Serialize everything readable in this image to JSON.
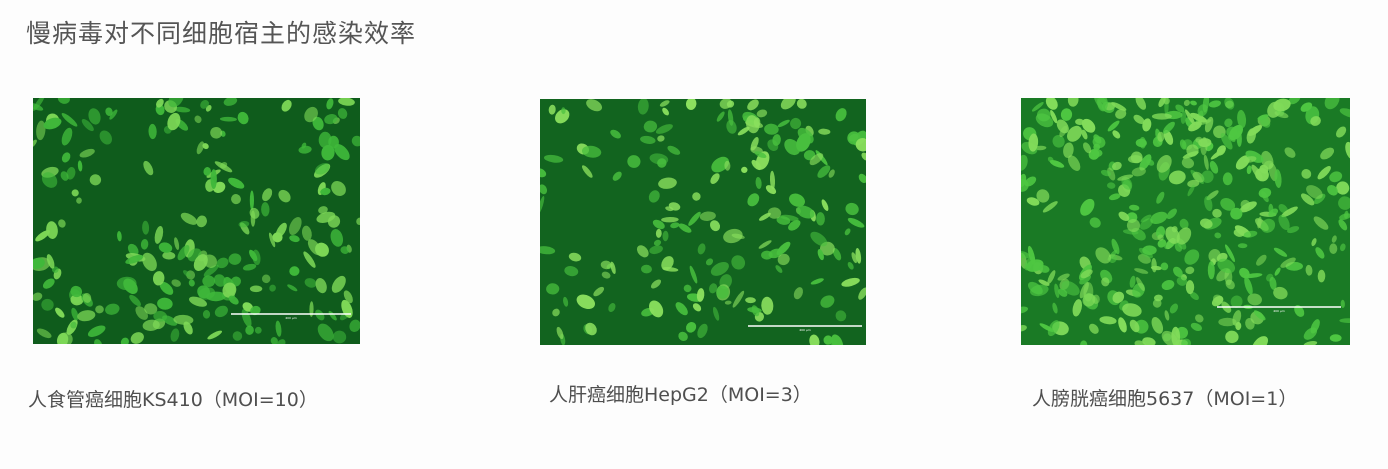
{
  "title": "慢病毒对不同细胞宿主的感染效率",
  "panels": [
    {
      "caption": "人食管癌细胞KS410（MOI=10）",
      "scale_bar_label": "400 µm",
      "palette": {
        "bg": "#0f5c1c",
        "cell_bright": "#7ed957",
        "cell_mid": "#3fb83a"
      }
    },
    {
      "caption": "人肝癌细胞HepG2（MOI=3）",
      "scale_bar_label": "400 µm",
      "palette": {
        "bg": "#12641f",
        "cell_bright": "#8be05e",
        "cell_mid": "#48bf3e"
      }
    },
    {
      "caption": "人膀胱癌细胞5637（MOI=1）",
      "scale_bar_label": "400 µm",
      "palette": {
        "bg": "#1a7a25",
        "cell_bright": "#82dc5a",
        "cell_mid": "#4ec742"
      }
    }
  ]
}
